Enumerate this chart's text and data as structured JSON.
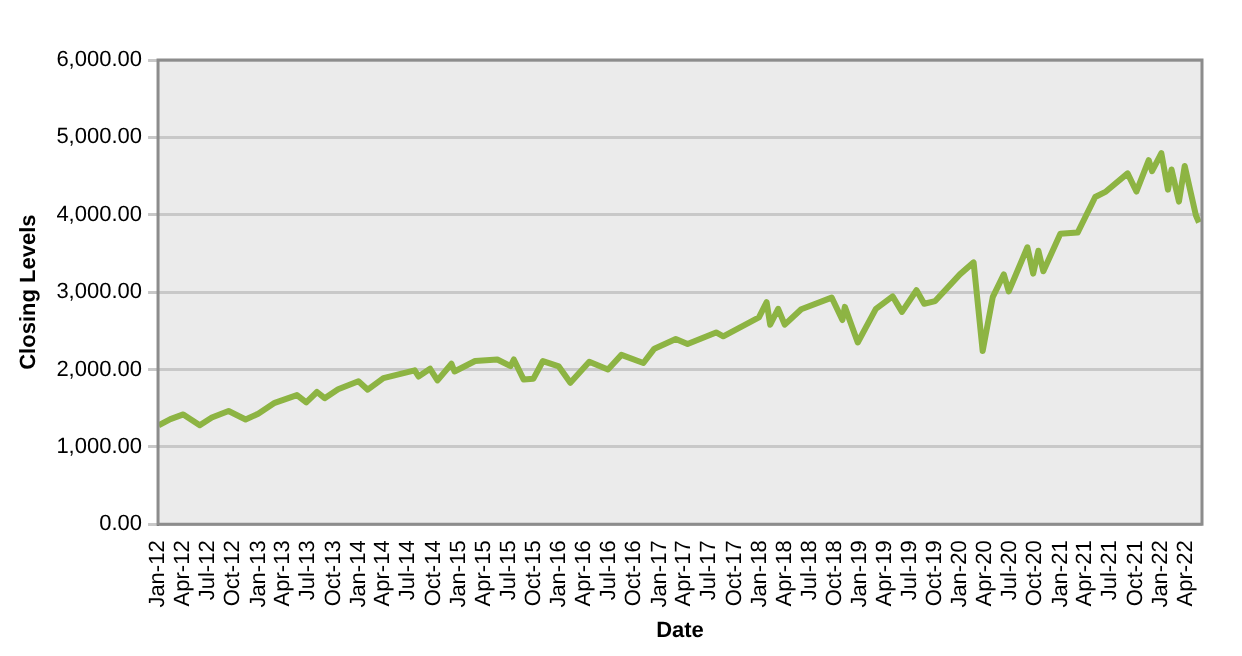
{
  "chart_data": {
    "type": "line",
    "xlabel": "Date",
    "ylabel": "Closing Levels",
    "grid": "y",
    "legend": false,
    "marker": "none",
    "line_style": "solid",
    "xlim": [
      "2012-01-01",
      "2022-05-31"
    ],
    "ylim": [
      0,
      6000
    ],
    "yticks": [
      {
        "value": 0,
        "label": "0.00"
      },
      {
        "value": 1000,
        "label": "1,000.00"
      },
      {
        "value": 2000,
        "label": "2,000.00"
      },
      {
        "value": 3000,
        "label": "3,000.00"
      },
      {
        "value": 4000,
        "label": "4,000.00"
      },
      {
        "value": 5000,
        "label": "5,000.00"
      },
      {
        "value": 6000,
        "label": "6,000.00"
      }
    ],
    "xticks": [
      {
        "value": "2012-01-01",
        "label": "Jan-12"
      },
      {
        "value": "2012-04-01",
        "label": "Apr-12"
      },
      {
        "value": "2012-07-01",
        "label": "Jul-12"
      },
      {
        "value": "2012-10-01",
        "label": "Oct-12"
      },
      {
        "value": "2013-01-01",
        "label": "Jan-13"
      },
      {
        "value": "2013-04-01",
        "label": "Apr-13"
      },
      {
        "value": "2013-07-01",
        "label": "Jul-13"
      },
      {
        "value": "2013-10-01",
        "label": "Oct-13"
      },
      {
        "value": "2014-01-01",
        "label": "Jan-14"
      },
      {
        "value": "2014-04-01",
        "label": "Apr-14"
      },
      {
        "value": "2014-07-01",
        "label": "Jul-14"
      },
      {
        "value": "2014-10-01",
        "label": "Oct-14"
      },
      {
        "value": "2015-01-01",
        "label": "Jan-15"
      },
      {
        "value": "2015-04-01",
        "label": "Apr-15"
      },
      {
        "value": "2015-07-01",
        "label": "Jul-15"
      },
      {
        "value": "2015-10-01",
        "label": "Oct-15"
      },
      {
        "value": "2016-01-01",
        "label": "Jan-16"
      },
      {
        "value": "2016-04-01",
        "label": "Apr-16"
      },
      {
        "value": "2016-07-01",
        "label": "Jul-16"
      },
      {
        "value": "2016-10-01",
        "label": "Oct-16"
      },
      {
        "value": "2017-01-01",
        "label": "Jan-17"
      },
      {
        "value": "2017-04-01",
        "label": "Apr-17"
      },
      {
        "value": "2017-07-01",
        "label": "Jul-17"
      },
      {
        "value": "2017-10-01",
        "label": "Oct-17"
      },
      {
        "value": "2018-01-01",
        "label": "Jan-18"
      },
      {
        "value": "2018-04-01",
        "label": "Apr-18"
      },
      {
        "value": "2018-07-01",
        "label": "Jul-18"
      },
      {
        "value": "2018-10-01",
        "label": "Oct-18"
      },
      {
        "value": "2019-01-01",
        "label": "Jan-19"
      },
      {
        "value": "2019-04-01",
        "label": "Apr-19"
      },
      {
        "value": "2019-07-01",
        "label": "Jul-19"
      },
      {
        "value": "2019-10-01",
        "label": "Oct-19"
      },
      {
        "value": "2020-01-01",
        "label": "Jan-20"
      },
      {
        "value": "2020-04-01",
        "label": "Apr-20"
      },
      {
        "value": "2020-07-01",
        "label": "Jul-20"
      },
      {
        "value": "2020-10-01",
        "label": "Oct-20"
      },
      {
        "value": "2021-01-01",
        "label": "Jan-21"
      },
      {
        "value": "2021-04-01",
        "label": "Apr-21"
      },
      {
        "value": "2021-07-01",
        "label": "Jul-21"
      },
      {
        "value": "2021-10-01",
        "label": "Oct-21"
      },
      {
        "value": "2022-01-01",
        "label": "Jan-22"
      },
      {
        "value": "2022-04-01",
        "label": "Apr-22"
      }
    ],
    "x": [
      "2012-01-03",
      "2012-02-15",
      "2012-04-02",
      "2012-06-01",
      "2012-07-15",
      "2012-09-14",
      "2012-11-15",
      "2012-12-31",
      "2013-03-01",
      "2013-05-21",
      "2013-06-24",
      "2013-08-02",
      "2013-08-30",
      "2013-10-18",
      "2013-12-31",
      "2014-02-03",
      "2014-04-01",
      "2014-07-24",
      "2014-08-07",
      "2014-09-18",
      "2014-10-15",
      "2014-12-05",
      "2014-12-16",
      "2015-03-01",
      "2015-05-21",
      "2015-07-08",
      "2015-07-20",
      "2015-08-25",
      "2015-09-29",
      "2015-11-03",
      "2015-12-31",
      "2016-02-11",
      "2016-04-20",
      "2016-06-27",
      "2016-08-15",
      "2016-11-03",
      "2016-12-13",
      "2017-03-01",
      "2017-04-13",
      "2017-07-26",
      "2017-08-21",
      "2017-12-29",
      "2018-01-26",
      "2018-02-08",
      "2018-03-09",
      "2018-04-02",
      "2018-06-01",
      "2018-09-20",
      "2018-10-29",
      "2018-11-07",
      "2018-12-24",
      "2019-02-28",
      "2019-04-30",
      "2019-06-03",
      "2019-07-26",
      "2019-08-23",
      "2019-10-02",
      "2019-12-31",
      "2020-02-19",
      "2020-03-23",
      "2020-04-29",
      "2020-06-08",
      "2020-06-26",
      "2020-09-02",
      "2020-09-23",
      "2020-10-12",
      "2020-10-30",
      "2020-12-31",
      "2021-03-04",
      "2021-05-07",
      "2021-06-15",
      "2021-09-02",
      "2021-10-04",
      "2021-11-18",
      "2021-11-30",
      "2022-01-03",
      "2022-01-27",
      "2022-02-09",
      "2022-03-08",
      "2022-03-29",
      "2022-05-09",
      "2022-05-20"
    ],
    "series": [
      {
        "color": "#8db443",
        "values": [
          1280,
          1360,
          1420,
          1280,
          1380,
          1465,
          1355,
          1430,
          1570,
          1670,
          1575,
          1710,
          1630,
          1745,
          1850,
          1740,
          1890,
          1990,
          1910,
          2010,
          1860,
          2075,
          1975,
          2110,
          2130,
          2045,
          2130,
          1870,
          1880,
          2110,
          2040,
          1830,
          2100,
          2000,
          2190,
          2085,
          2270,
          2395,
          2330,
          2480,
          2430,
          2675,
          2870,
          2580,
          2785,
          2580,
          2780,
          2930,
          2640,
          2810,
          2350,
          2785,
          2945,
          2745,
          3025,
          2850,
          2885,
          3230,
          3385,
          2240,
          2940,
          3230,
          3010,
          3580,
          3240,
          3535,
          3270,
          3755,
          3770,
          4230,
          4300,
          4535,
          4300,
          4705,
          4565,
          4795,
          4325,
          4585,
          4170,
          4630,
          3990,
          3900
        ]
      }
    ]
  }
}
